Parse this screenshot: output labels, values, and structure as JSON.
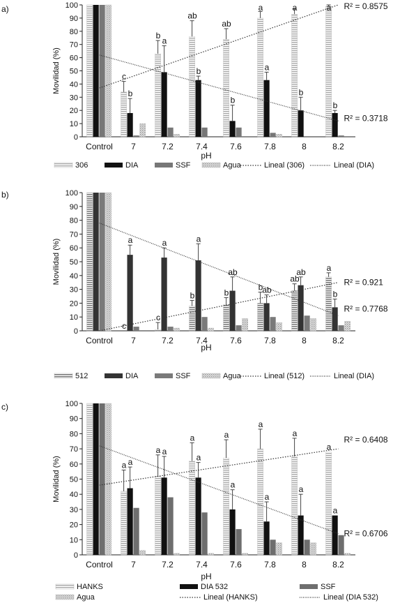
{
  "chart_data": [
    {
      "panel": "a)",
      "type": "bar",
      "xlabel": "pH",
      "ylabel": "Movilidad (%)",
      "ylim": [
        0,
        100
      ],
      "yticks": [
        0,
        10,
        20,
        30,
        40,
        50,
        60,
        70,
        80,
        90,
        100
      ],
      "categories": [
        "Control",
        "7",
        "7.2",
        "7.4",
        "7.6",
        "7.8",
        "8",
        "8.2"
      ],
      "series": [
        {
          "name": "306",
          "values": [
            100,
            34,
            63,
            76,
            74,
            90,
            93,
            99
          ],
          "err": [
            0,
            8,
            10,
            12,
            8,
            5,
            4,
            1
          ]
        },
        {
          "name": "DIA",
          "values": [
            100,
            18,
            49,
            43,
            12,
            43,
            20,
            18
          ],
          "err": [
            0,
            11,
            20,
            3,
            12,
            6,
            10,
            2
          ]
        },
        {
          "name": "SSF",
          "values": [
            100,
            1,
            7,
            7,
            7,
            3,
            0,
            1
          ],
          "err": [
            0,
            0,
            0,
            0,
            0,
            0,
            0,
            0
          ]
        },
        {
          "name": "Agua",
          "values": [
            100,
            10,
            2,
            0,
            0,
            2,
            0,
            0
          ],
          "err": [
            0,
            0,
            0,
            0,
            0,
            0,
            0,
            0
          ]
        }
      ],
      "letters": [
        {
          "series": 0,
          "cat": 1,
          "text": "c"
        },
        {
          "series": 1,
          "cat": 1,
          "text": "b"
        },
        {
          "series": 0,
          "cat": 2,
          "text": "b"
        },
        {
          "series": 1,
          "cat": 2,
          "text": "a"
        },
        {
          "series": 0,
          "cat": 3,
          "text": "ab"
        },
        {
          "series": 1,
          "cat": 3,
          "text": "b"
        },
        {
          "series": 0,
          "cat": 4,
          "text": "ab"
        },
        {
          "series": 1,
          "cat": 4,
          "text": "b"
        },
        {
          "series": 0,
          "cat": 5,
          "text": "a"
        },
        {
          "series": 1,
          "cat": 5,
          "text": "a"
        },
        {
          "series": 0,
          "cat": 6,
          "text": "a"
        },
        {
          "series": 1,
          "cat": 6,
          "text": "b"
        },
        {
          "series": 0,
          "cat": 7,
          "text": "a"
        },
        {
          "series": 1,
          "cat": 7,
          "text": "b"
        }
      ],
      "trendlines": [
        {
          "series": 0,
          "start": 37,
          "end": 100,
          "r2": "R² = 0.8575",
          "r2_at": 100
        },
        {
          "series": 1,
          "start": 62,
          "end": 12,
          "r2": "R² = 0.3718",
          "r2_at": 14
        }
      ],
      "legend": [
        "306",
        "DIA",
        "SSF",
        "Agua",
        "Lineal (306)",
        "Lineal (DIA)"
      ]
    },
    {
      "panel": "b)",
      "type": "bar",
      "xlabel": "pH",
      "ylabel": "Movilidad (%)",
      "ylim": [
        0,
        100
      ],
      "yticks": [
        0,
        10,
        20,
        30,
        40,
        50,
        60,
        70,
        80,
        90,
        100
      ],
      "categories": [
        "Control",
        "7",
        "7.2",
        "7.4",
        "7.6",
        "7.8",
        "8",
        "8.2"
      ],
      "series": [
        {
          "name": "512",
          "values": [
            100,
            0,
            1,
            18,
            19,
            20,
            29,
            39
          ],
          "err": [
            0,
            0,
            5,
            4,
            5,
            8,
            5,
            3
          ]
        },
        {
          "name": "DIA",
          "values": [
            100,
            55,
            53,
            51,
            29,
            20,
            33,
            17
          ],
          "err": [
            0,
            7,
            7,
            12,
            10,
            6,
            6,
            6
          ]
        },
        {
          "name": "SSF",
          "values": [
            100,
            3,
            3,
            10,
            4,
            10,
            11,
            4
          ],
          "err": [
            0,
            0,
            0,
            0,
            0,
            0,
            0,
            0
          ]
        },
        {
          "name": "Agua",
          "values": [
            100,
            0,
            2,
            2,
            9,
            6,
            9,
            7
          ],
          "err": [
            0,
            0,
            0,
            0,
            0,
            0,
            0,
            0
          ]
        }
      ],
      "letters": [
        {
          "series": 0,
          "cat": 1,
          "text": "c"
        },
        {
          "series": 1,
          "cat": 1,
          "text": "a"
        },
        {
          "series": 0,
          "cat": 2,
          "text": "c"
        },
        {
          "series": 1,
          "cat": 2,
          "text": "a"
        },
        {
          "series": 0,
          "cat": 3,
          "text": "b"
        },
        {
          "series": 1,
          "cat": 3,
          "text": "a"
        },
        {
          "series": 0,
          "cat": 4,
          "text": "b"
        },
        {
          "series": 1,
          "cat": 4,
          "text": "ab"
        },
        {
          "series": 0,
          "cat": 5,
          "text": "b"
        },
        {
          "series": 1,
          "cat": 5,
          "text": "ab"
        },
        {
          "series": 0,
          "cat": 6,
          "text": "ab"
        },
        {
          "series": 1,
          "cat": 6,
          "text": "ab"
        },
        {
          "series": 0,
          "cat": 7,
          "text": "a"
        },
        {
          "series": 1,
          "cat": 7,
          "text": "b"
        }
      ],
      "trendlines": [
        {
          "series": 0,
          "start": 0,
          "end": 35,
          "r2": "R² = 0.921",
          "r2_at": 35
        },
        {
          "series": 1,
          "start": 78,
          "end": 11,
          "r2": "R² = 0.7768",
          "r2_at": 16
        }
      ],
      "legend": [
        "512",
        "DIA",
        "SSF",
        "Agua",
        "Lineal (512)",
        "Lineal (DIA)"
      ]
    },
    {
      "panel": "c)",
      "type": "bar",
      "xlabel": "pH",
      "ylabel": "Movilidad (%)",
      "ylim": [
        0,
        100
      ],
      "yticks": [
        0,
        10,
        20,
        30,
        40,
        50,
        60,
        70,
        80,
        90,
        100
      ],
      "categories": [
        "Control",
        "7",
        "7.2",
        "7.4",
        "7.6",
        "7.8",
        "8",
        "8.2"
      ],
      "series": [
        {
          "name": "HANKS",
          "values": [
            100,
            42,
            52,
            62,
            64,
            70,
            65,
            68
          ],
          "err": [
            0,
            14,
            14,
            12,
            12,
            13,
            12,
            0
          ]
        },
        {
          "name": "DIA 532",
          "values": [
            100,
            44,
            51,
            51,
            30,
            22,
            26,
            26
          ],
          "err": [
            0,
            14,
            14,
            10,
            13,
            13,
            14,
            0
          ]
        },
        {
          "name": "SSF",
          "values": [
            100,
            31,
            38,
            28,
            17,
            10,
            10,
            13
          ],
          "err": [
            0,
            0,
            0,
            0,
            0,
            0,
            0,
            0
          ]
        },
        {
          "name": "Agua",
          "values": [
            100,
            3,
            1,
            1,
            1,
            8,
            8,
            1
          ],
          "err": [
            0,
            0,
            0,
            0,
            0,
            0,
            0,
            0
          ]
        }
      ],
      "letters": [
        {
          "series": 0,
          "cat": 1,
          "text": "a"
        },
        {
          "series": 1,
          "cat": 1,
          "text": "a"
        },
        {
          "series": 0,
          "cat": 2,
          "text": "a"
        },
        {
          "series": 1,
          "cat": 2,
          "text": "a"
        },
        {
          "series": 0,
          "cat": 3,
          "text": "a"
        },
        {
          "series": 1,
          "cat": 3,
          "text": "a"
        },
        {
          "series": 0,
          "cat": 4,
          "text": "a"
        },
        {
          "series": 1,
          "cat": 4,
          "text": "a"
        },
        {
          "series": 0,
          "cat": 5,
          "text": "a"
        },
        {
          "series": 1,
          "cat": 5,
          "text": "a"
        },
        {
          "series": 0,
          "cat": 6,
          "text": "a"
        },
        {
          "series": 1,
          "cat": 6,
          "text": "a"
        },
        {
          "series": 0,
          "cat": 7,
          "text": "a"
        },
        {
          "series": 1,
          "cat": 7,
          "text": "a"
        }
      ],
      "trendlines": [
        {
          "series": 0,
          "start": 46,
          "end": 70,
          "r2": "R² = 0.6408",
          "r2_at": 76
        },
        {
          "series": 1,
          "start": 72,
          "end": 14,
          "r2": "R² = 0.6706",
          "r2_at": 14
        }
      ],
      "legend": [
        "HANKS",
        "DIA 532",
        "SSF",
        "Agua",
        "Lineal (HANKS)",
        "Lineal (DIA 532)"
      ]
    }
  ]
}
